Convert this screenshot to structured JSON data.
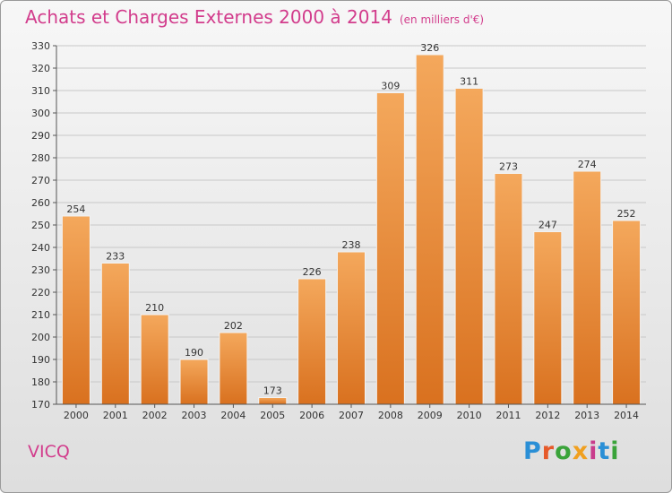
{
  "header": {
    "title": "Achats et Charges Externes 2000 à 2014",
    "subtitle": "(en milliers d'€)"
  },
  "footer": {
    "place": "VICQ",
    "logo": "Proxiti"
  },
  "colors": {
    "bar_top": "#f4a85c",
    "bar_bottom": "#d9711f",
    "title": "#d23c8c",
    "grid": "#c8c8c8"
  },
  "chart_data": {
    "type": "bar",
    "title": "Achats et Charges Externes 2000 à 2014",
    "subtitle": "(en milliers d'€)",
    "categories": [
      "2000",
      "2001",
      "2002",
      "2003",
      "2004",
      "2005",
      "2006",
      "2007",
      "2008",
      "2009",
      "2010",
      "2011",
      "2012",
      "2013",
      "2014"
    ],
    "values": [
      254,
      233,
      210,
      190,
      202,
      173,
      226,
      238,
      309,
      326,
      311,
      273,
      247,
      274,
      252
    ],
    "ylim": [
      170,
      330
    ],
    "ytick_step": 10,
    "grid": true,
    "xlabel": "",
    "ylabel": ""
  }
}
